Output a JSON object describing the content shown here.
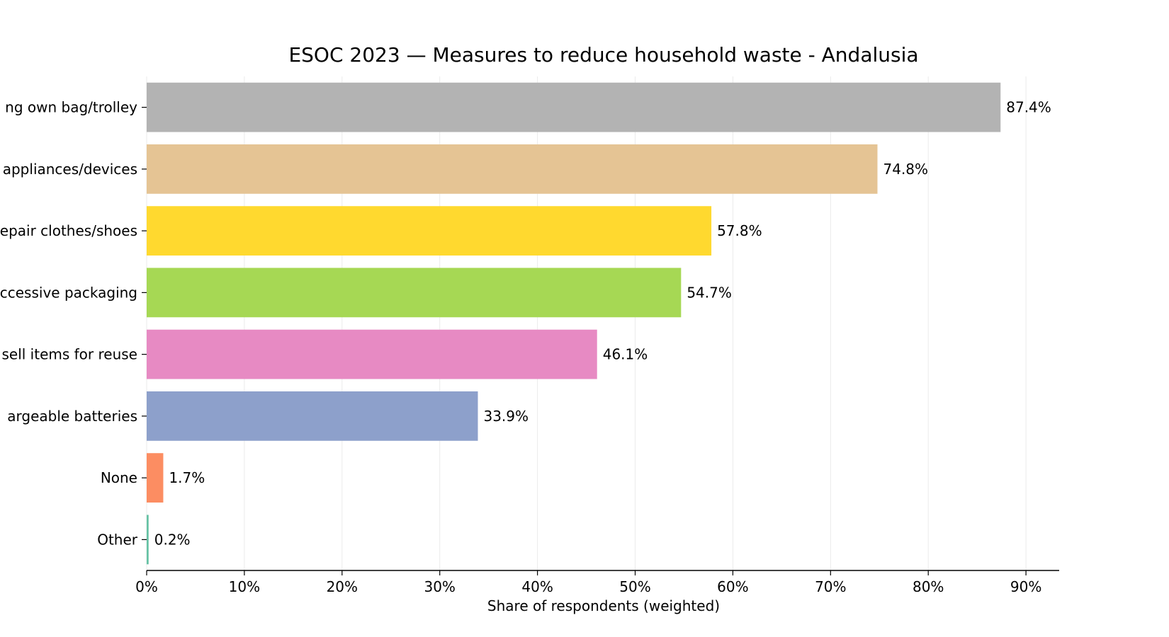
{
  "chart_data": {
    "type": "bar",
    "orientation": "horizontal",
    "title": "ESOC 2023 — Measures to reduce household waste - Andalusia",
    "xlabel": "Share of respondents (weighted)",
    "ylabel": "",
    "xlim": [
      0,
      93.4
    ],
    "x_ticks": [
      "0%",
      "10%",
      "20%",
      "30%",
      "40%",
      "50%",
      "60%",
      "70%",
      "80%",
      "90%"
    ],
    "grid": "vertical",
    "categories": [
      "ng own bag/trolley",
      "appliances/devices",
      "epair clothes/shoes",
      "ccessive packaging",
      "sell items for reuse",
      "argeable batteries",
      "None",
      "Other"
    ],
    "values": [
      87.4,
      74.8,
      57.8,
      54.7,
      46.1,
      33.9,
      1.7,
      0.2
    ],
    "value_labels": [
      "87.4%",
      "74.8%",
      "57.8%",
      "54.7%",
      "46.1%",
      "33.9%",
      "1.7%",
      "0.2%"
    ],
    "colors": [
      "#b3b3b3",
      "#e5c494",
      "#ffd92f",
      "#a6d854",
      "#e78ac3",
      "#8da0cb",
      "#fc8d62",
      "#66c2a5"
    ]
  }
}
